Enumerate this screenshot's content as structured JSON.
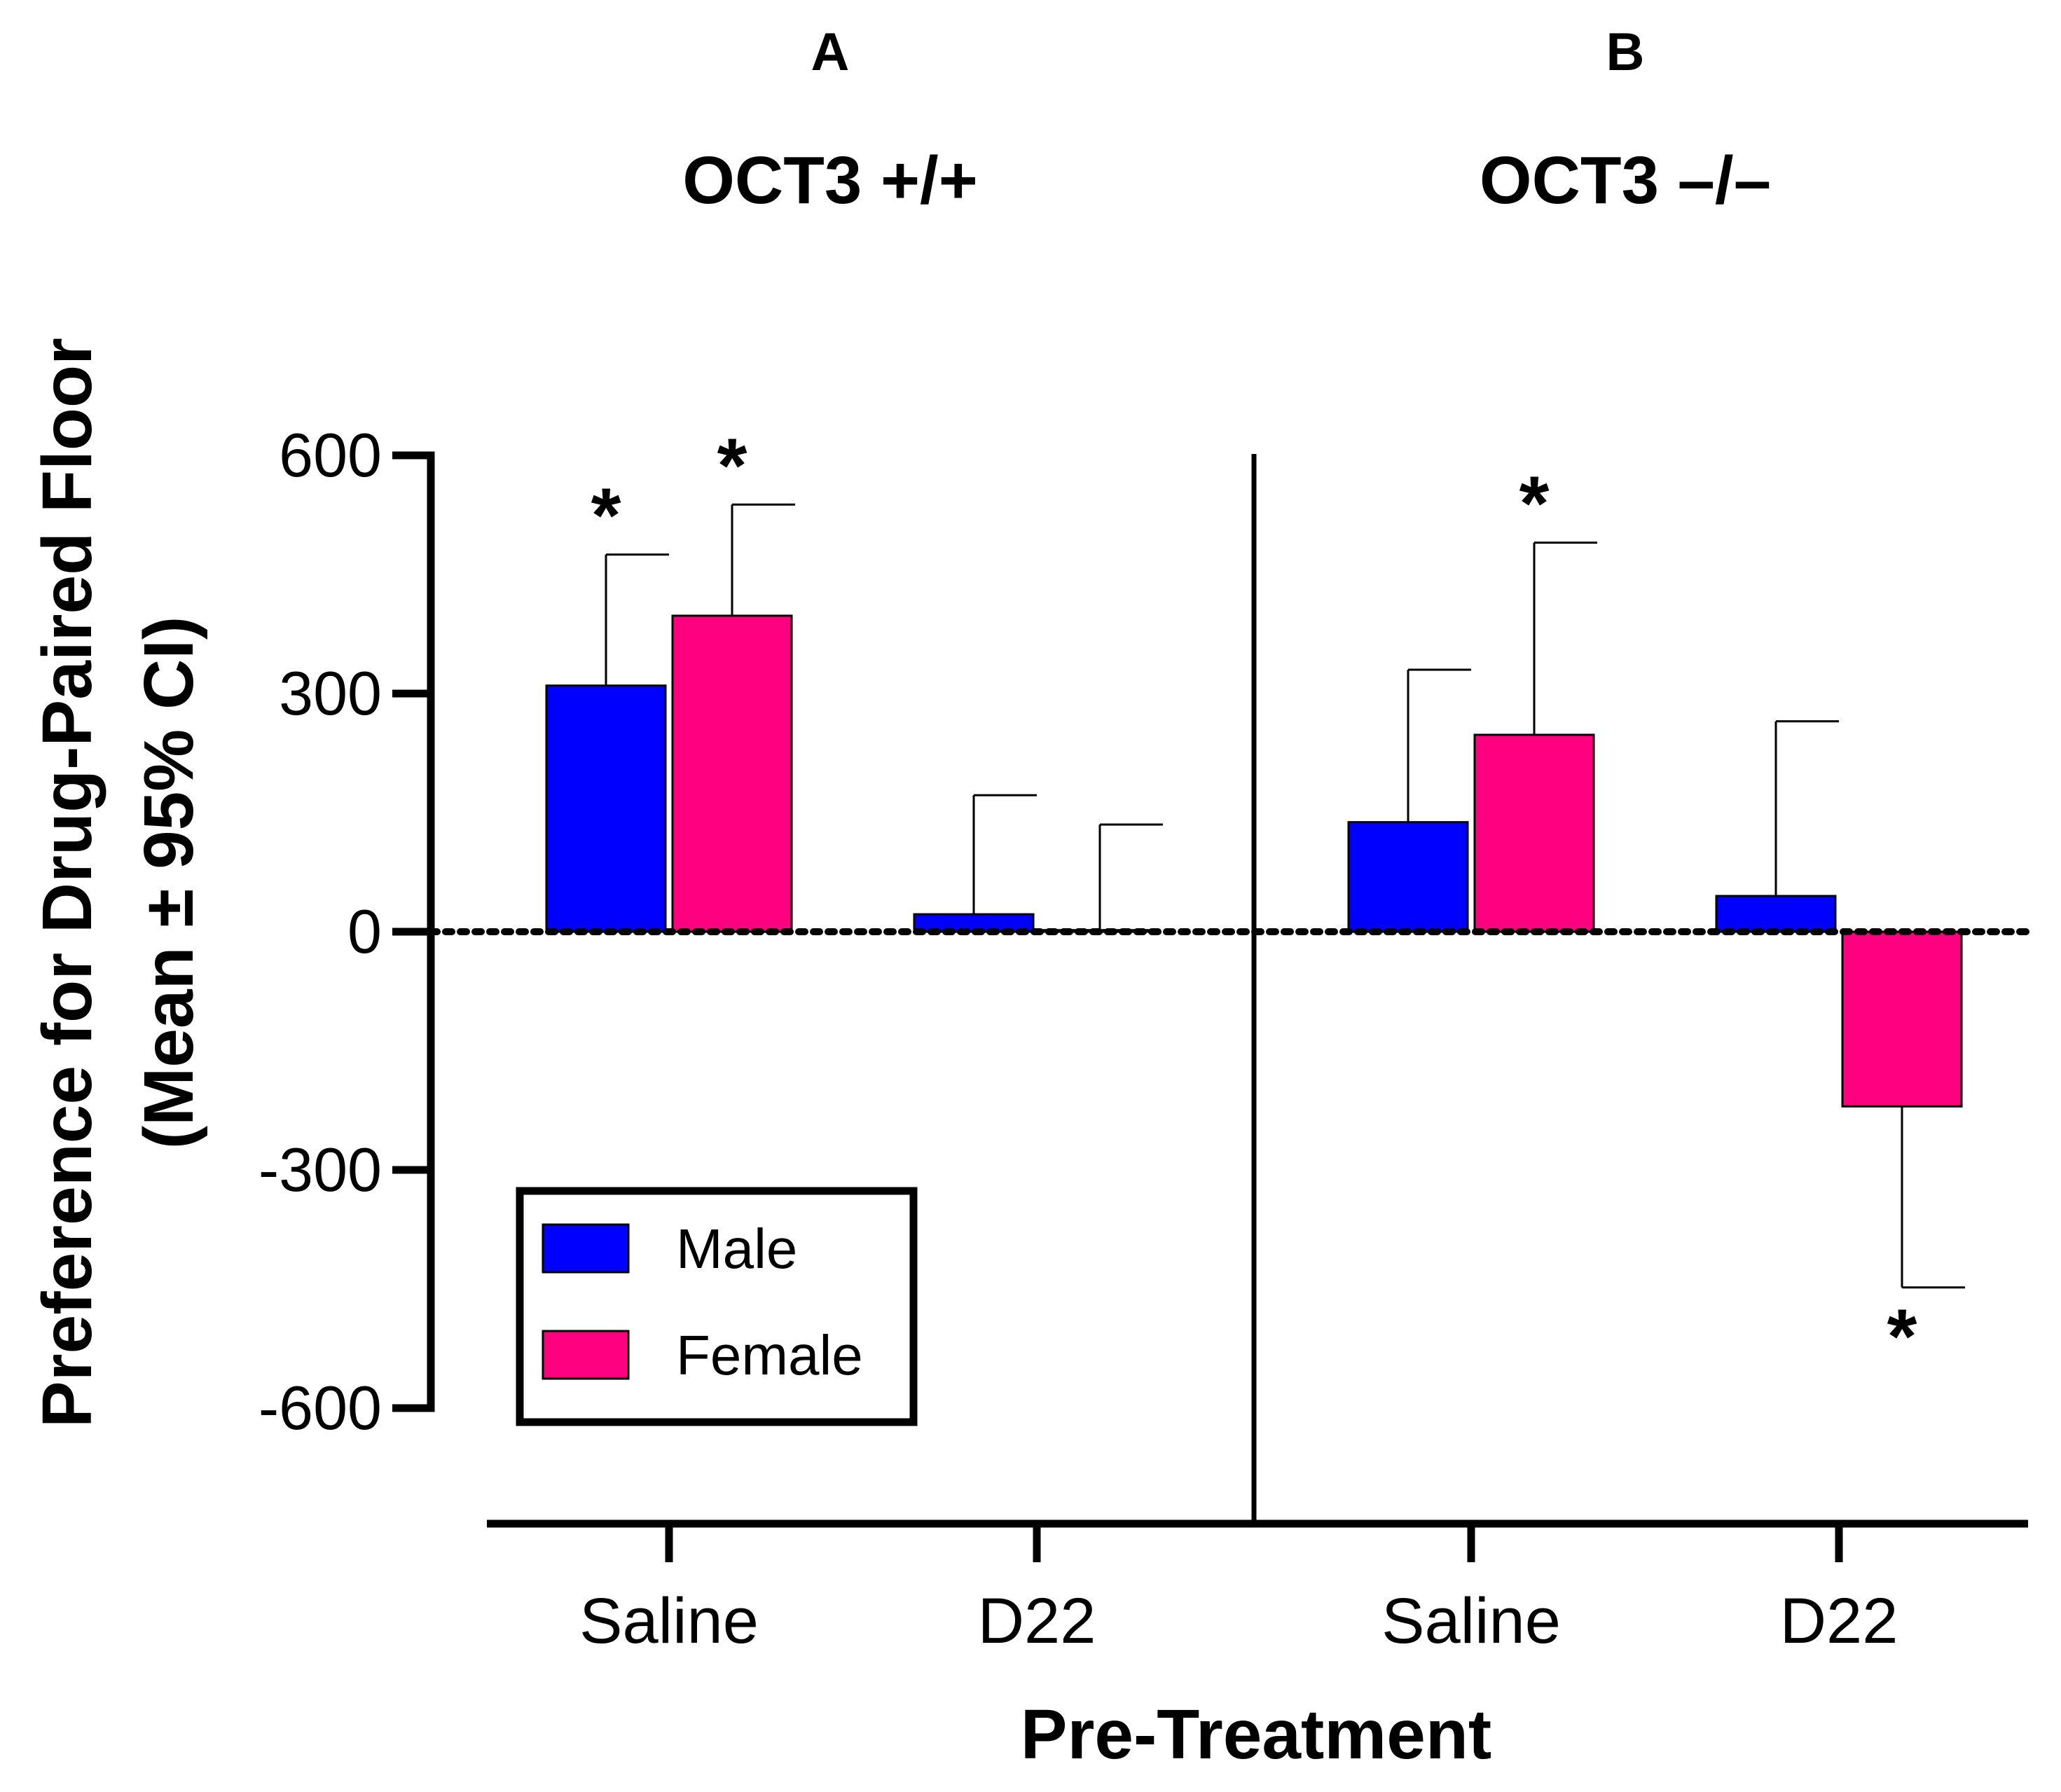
{
  "chart_data": {
    "type": "bar",
    "ylabel_line1": "Preference for Drug-Paired Floor",
    "ylabel_line2": "(Mean ± 95% CI)",
    "xlabel": "Pre-Treatment",
    "ylim": [
      -600,
      600
    ],
    "yticks": [
      600,
      300,
      0,
      -300,
      -600
    ],
    "ytick_labels": [
      "600",
      "300",
      "0",
      "-300",
      "-600"
    ],
    "series": [
      {
        "name": "Male",
        "color": "#0000ff"
      },
      {
        "name": "Female",
        "color": "#ff0080"
      }
    ],
    "panels": [
      {
        "letter": "A",
        "title": "OCT3 +/+",
        "categories": [
          "Saline",
          "D22"
        ],
        "groups": [
          {
            "category": "Saline",
            "male": {
              "value": 310,
              "ci_upper": 475,
              "star": true
            },
            "female": {
              "value": 398,
              "ci_upper": 538,
              "star": true
            }
          },
          {
            "category": "D22",
            "male": {
              "value": 22,
              "ci_upper": 172,
              "star": false
            },
            "female": {
              "value": 2,
              "ci_upper": 135,
              "star": false
            }
          }
        ]
      },
      {
        "letter": "B",
        "title": "OCT3 –/–",
        "categories": [
          "Saline",
          "D22"
        ],
        "groups": [
          {
            "category": "Saline",
            "male": {
              "value": 138,
              "ci_upper": 330,
              "star": false
            },
            "female": {
              "value": 248,
              "ci_upper": 490,
              "star": true
            }
          },
          {
            "category": "D22",
            "male": {
              "value": 45,
              "ci_upper": 265,
              "star": false
            },
            "female": {
              "value": -220,
              "ci_lower": -448,
              "star": true
            }
          }
        ]
      }
    ],
    "significance_marker": "*",
    "reference_line": 0
  }
}
